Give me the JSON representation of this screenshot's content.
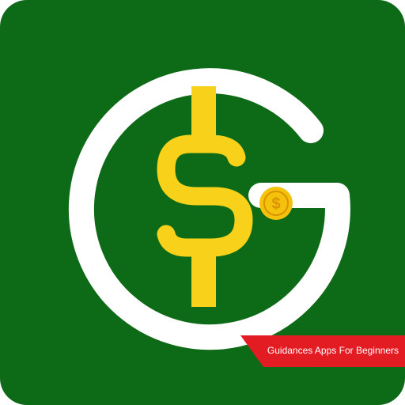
{
  "app_icon": {
    "colors": {
      "background": "#0d6a16",
      "g_letter": "#ffffff",
      "dollar": "#f7d11a",
      "coin": "#f4c20d",
      "coin_symbol": "#d99400",
      "ribbon": "#e31b22",
      "ribbon_text": "#ffffff"
    },
    "icons": {
      "logo": "g-dollar-logo-icon",
      "coin": "coin-icon"
    },
    "ribbon_text": "Guidances Apps For Beginners"
  }
}
